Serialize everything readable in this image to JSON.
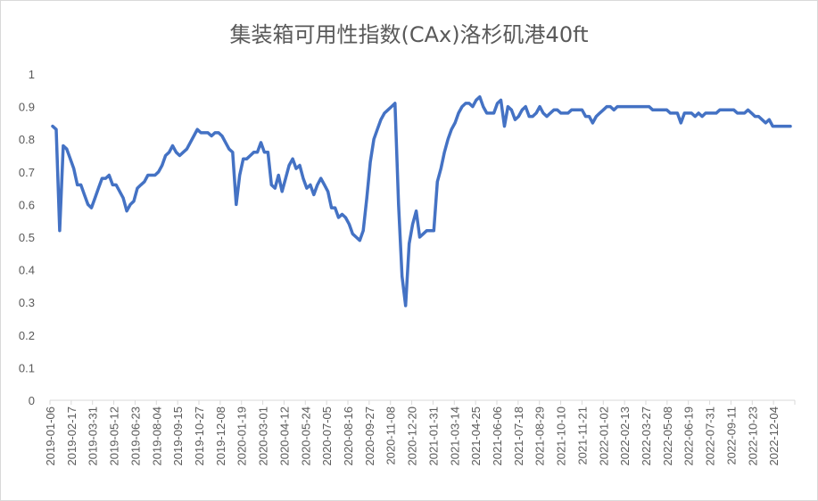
{
  "chart_data": {
    "type": "line",
    "title": "集装箱可用性指数(CAx)洛杉矶港40ft",
    "xlabel": "",
    "ylabel": "",
    "ylim": [
      0,
      1
    ],
    "y_ticks": [
      "0",
      "0.1",
      "0.2",
      "0.3",
      "0.4",
      "0.5",
      "0.6",
      "0.7",
      "0.8",
      "0.9",
      "1"
    ],
    "grid": false,
    "line_color": "#4472c4",
    "x_tick_labels": [
      "2019-01-06",
      "2019-02-17",
      "2019-03-31",
      "2019-05-12",
      "2019-06-23",
      "2019-08-04",
      "2019-09-15",
      "2019-10-27",
      "2019-12-08",
      "2020-01-19",
      "2020-03-01",
      "2020-04-12",
      "2020-05-24",
      "2020-07-05",
      "2020-08-16",
      "2020-09-27",
      "2020-11-08",
      "2020-12-20",
      "2021-01-31",
      "2021-03-14",
      "2021-04-25",
      "2021-06-06",
      "2021-07-18",
      "2021-08-29",
      "2021-10-10",
      "2021-11-21",
      "2022-01-02",
      "2022-02-13",
      "2022-03-27",
      "2022-05-08",
      "2022-06-19",
      "2022-07-31",
      "2022-09-11",
      "2022-10-23",
      "2022-12-04"
    ],
    "series": [
      {
        "name": "",
        "values": [
          0.84,
          0.83,
          0.52,
          0.78,
          0.77,
          0.74,
          0.71,
          0.66,
          0.66,
          0.63,
          0.6,
          0.59,
          0.62,
          0.65,
          0.68,
          0.68,
          0.69,
          0.66,
          0.66,
          0.64,
          0.62,
          0.58,
          0.6,
          0.61,
          0.65,
          0.66,
          0.67,
          0.69,
          0.69,
          0.69,
          0.7,
          0.72,
          0.75,
          0.76,
          0.78,
          0.76,
          0.75,
          0.76,
          0.77,
          0.79,
          0.81,
          0.83,
          0.82,
          0.82,
          0.82,
          0.81,
          0.82,
          0.82,
          0.81,
          0.79,
          0.77,
          0.76,
          0.6,
          0.69,
          0.74,
          0.74,
          0.75,
          0.76,
          0.76,
          0.79,
          0.76,
          0.76,
          0.66,
          0.65,
          0.69,
          0.64,
          0.68,
          0.72,
          0.74,
          0.71,
          0.72,
          0.68,
          0.65,
          0.66,
          0.63,
          0.66,
          0.68,
          0.66,
          0.64,
          0.59,
          0.59,
          0.56,
          0.57,
          0.56,
          0.54,
          0.51,
          0.5,
          0.49,
          0.52,
          0.62,
          0.73,
          0.8,
          0.83,
          0.86,
          0.88,
          0.89,
          0.9,
          0.91,
          0.6,
          0.38,
          0.29,
          0.48,
          0.54,
          0.58,
          0.5,
          0.51,
          0.52,
          0.52,
          0.52,
          0.67,
          0.71,
          0.76,
          0.8,
          0.83,
          0.85,
          0.88,
          0.9,
          0.91,
          0.91,
          0.9,
          0.92,
          0.93,
          0.9,
          0.88,
          0.88,
          0.88,
          0.91,
          0.92,
          0.84,
          0.9,
          0.89,
          0.86,
          0.87,
          0.89,
          0.9,
          0.87,
          0.87,
          0.88,
          0.9,
          0.88,
          0.87,
          0.88,
          0.89,
          0.89,
          0.88,
          0.88,
          0.88,
          0.89,
          0.89,
          0.89,
          0.89,
          0.87,
          0.87,
          0.85,
          0.87,
          0.88,
          0.89,
          0.9,
          0.9,
          0.89,
          0.9,
          0.9,
          0.9,
          0.9,
          0.9,
          0.9,
          0.9,
          0.9,
          0.9,
          0.9,
          0.89,
          0.89,
          0.89,
          0.89,
          0.89,
          0.88,
          0.88,
          0.88,
          0.85,
          0.88,
          0.88,
          0.88,
          0.87,
          0.88,
          0.87,
          0.88,
          0.88,
          0.88,
          0.88,
          0.89,
          0.89,
          0.89,
          0.89,
          0.89,
          0.88,
          0.88,
          0.88,
          0.89,
          0.88,
          0.87,
          0.87,
          0.86,
          0.85,
          0.86,
          0.84,
          0.84,
          0.84,
          0.84,
          0.84,
          0.84
        ]
      }
    ]
  }
}
